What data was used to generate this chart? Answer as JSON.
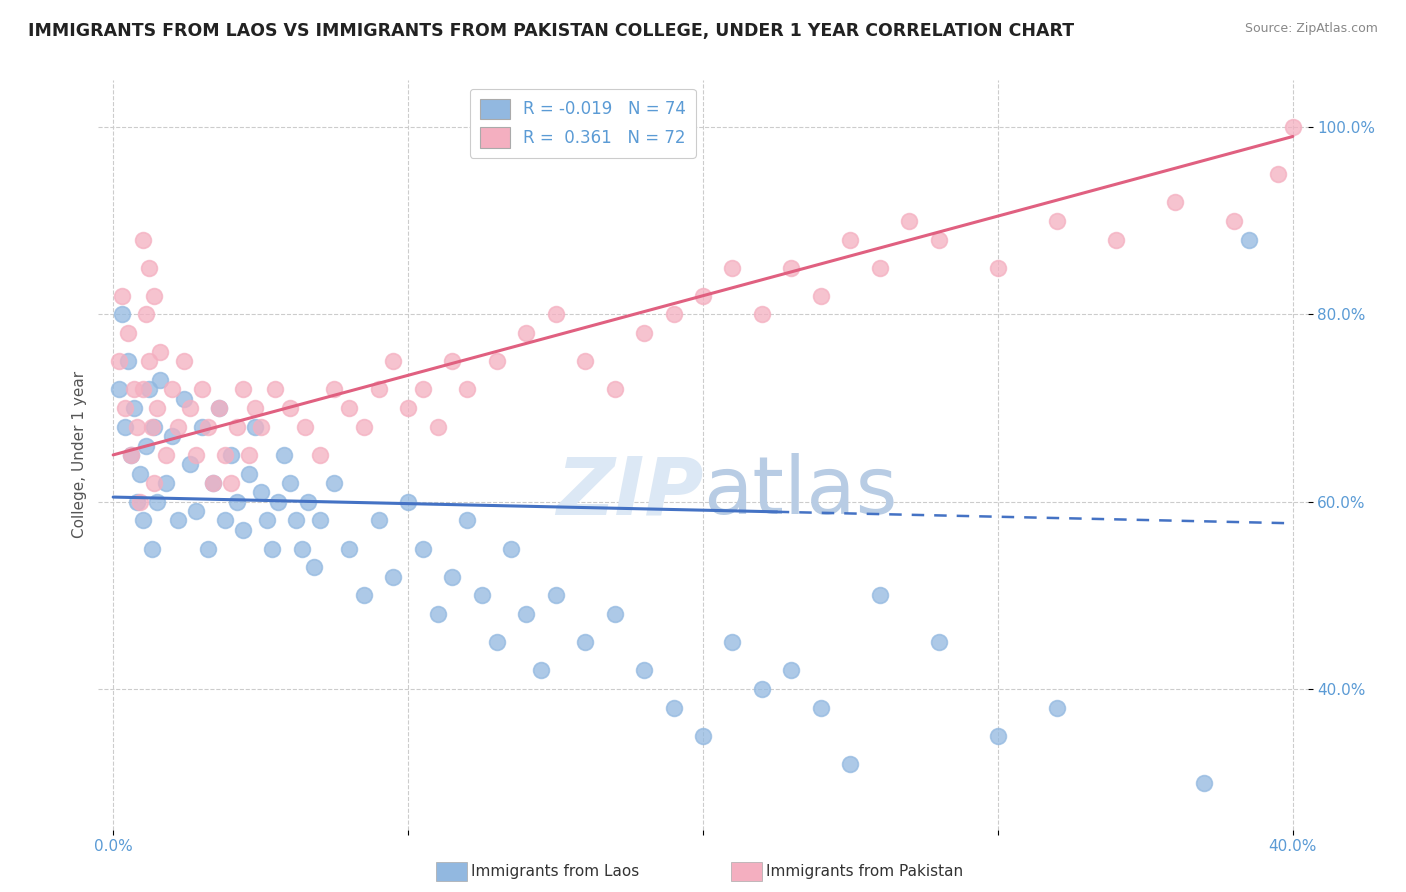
{
  "title": "IMMIGRANTS FROM LAOS VS IMMIGRANTS FROM PAKISTAN COLLEGE, UNDER 1 YEAR CORRELATION CHART",
  "source": "Source: ZipAtlas.com",
  "xlabel": "",
  "ylabel": "College, Under 1 year",
  "xlim": [
    -0.005,
    0.405
  ],
  "ylim": [
    0.25,
    1.05
  ],
  "yticks": [
    0.4,
    0.6,
    0.8,
    1.0
  ],
  "ytick_labels": [
    "40.0%",
    "60.0%",
    "80.0%",
    "100.0%"
  ],
  "xtick_vals": [
    0.0,
    0.1,
    0.2,
    0.3,
    0.4
  ],
  "xtick_labels": [
    "0.0%",
    "",
    "",
    "",
    "40.0%"
  ],
  "legend_r_laos": "-0.019",
  "legend_n_laos": "74",
  "legend_r_pakistan": "0.361",
  "legend_n_pakistan": "72",
  "blue_color": "#92b8e0",
  "pink_color": "#f4afc0",
  "blue_line_color": "#4472c4",
  "pink_line_color": "#e06080",
  "watermark_color": "#dce8f5",
  "laos_x": [
    0.002,
    0.003,
    0.004,
    0.005,
    0.006,
    0.007,
    0.008,
    0.009,
    0.01,
    0.011,
    0.012,
    0.013,
    0.014,
    0.015,
    0.016,
    0.018,
    0.02,
    0.022,
    0.024,
    0.026,
    0.028,
    0.03,
    0.032,
    0.034,
    0.036,
    0.038,
    0.04,
    0.042,
    0.044,
    0.046,
    0.048,
    0.05,
    0.052,
    0.054,
    0.056,
    0.058,
    0.06,
    0.062,
    0.064,
    0.066,
    0.068,
    0.07,
    0.075,
    0.08,
    0.085,
    0.09,
    0.095,
    0.1,
    0.105,
    0.11,
    0.115,
    0.12,
    0.125,
    0.13,
    0.135,
    0.14,
    0.145,
    0.15,
    0.16,
    0.17,
    0.18,
    0.19,
    0.2,
    0.21,
    0.22,
    0.23,
    0.24,
    0.25,
    0.26,
    0.28,
    0.3,
    0.32,
    0.37,
    0.385
  ],
  "laos_y": [
    0.72,
    0.8,
    0.68,
    0.75,
    0.65,
    0.7,
    0.6,
    0.63,
    0.58,
    0.66,
    0.72,
    0.55,
    0.68,
    0.6,
    0.73,
    0.62,
    0.67,
    0.58,
    0.71,
    0.64,
    0.59,
    0.68,
    0.55,
    0.62,
    0.7,
    0.58,
    0.65,
    0.6,
    0.57,
    0.63,
    0.68,
    0.61,
    0.58,
    0.55,
    0.6,
    0.65,
    0.62,
    0.58,
    0.55,
    0.6,
    0.53,
    0.58,
    0.62,
    0.55,
    0.5,
    0.58,
    0.52,
    0.6,
    0.55,
    0.48,
    0.52,
    0.58,
    0.5,
    0.45,
    0.55,
    0.48,
    0.42,
    0.5,
    0.45,
    0.48,
    0.42,
    0.38,
    0.35,
    0.45,
    0.4,
    0.42,
    0.38,
    0.32,
    0.5,
    0.45,
    0.35,
    0.38,
    0.3,
    0.88
  ],
  "pakistan_x": [
    0.002,
    0.003,
    0.004,
    0.005,
    0.006,
    0.007,
    0.008,
    0.009,
    0.01,
    0.011,
    0.012,
    0.013,
    0.014,
    0.015,
    0.016,
    0.018,
    0.02,
    0.022,
    0.024,
    0.026,
    0.028,
    0.03,
    0.032,
    0.034,
    0.036,
    0.038,
    0.04,
    0.042,
    0.044,
    0.046,
    0.048,
    0.05,
    0.055,
    0.06,
    0.065,
    0.07,
    0.075,
    0.08,
    0.085,
    0.09,
    0.095,
    0.1,
    0.105,
    0.11,
    0.115,
    0.12,
    0.13,
    0.14,
    0.15,
    0.16,
    0.17,
    0.18,
    0.19,
    0.2,
    0.21,
    0.22,
    0.23,
    0.24,
    0.25,
    0.26,
    0.27,
    0.28,
    0.3,
    0.32,
    0.34,
    0.36,
    0.38,
    0.395,
    0.01,
    0.012,
    0.014,
    0.4
  ],
  "pakistan_y": [
    0.75,
    0.82,
    0.7,
    0.78,
    0.65,
    0.72,
    0.68,
    0.6,
    0.72,
    0.8,
    0.75,
    0.68,
    0.62,
    0.7,
    0.76,
    0.65,
    0.72,
    0.68,
    0.75,
    0.7,
    0.65,
    0.72,
    0.68,
    0.62,
    0.7,
    0.65,
    0.62,
    0.68,
    0.72,
    0.65,
    0.7,
    0.68,
    0.72,
    0.7,
    0.68,
    0.65,
    0.72,
    0.7,
    0.68,
    0.72,
    0.75,
    0.7,
    0.72,
    0.68,
    0.75,
    0.72,
    0.75,
    0.78,
    0.8,
    0.75,
    0.72,
    0.78,
    0.8,
    0.82,
    0.85,
    0.8,
    0.85,
    0.82,
    0.88,
    0.85,
    0.9,
    0.88,
    0.85,
    0.9,
    0.88,
    0.92,
    0.9,
    0.95,
    0.88,
    0.85,
    0.82,
    1.0
  ]
}
